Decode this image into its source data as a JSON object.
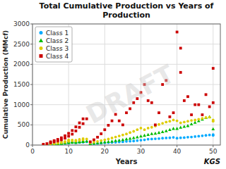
{
  "chart_data": {
    "type": "scatter",
    "title": "Total Cumulative Production vs Years of\nProduction",
    "x_label": "Years",
    "y_label": "Cumulative Production (MMcf)",
    "xlim": [
      0,
      52
    ],
    "ylim": [
      0,
      3000
    ],
    "xticks": [
      0,
      10,
      20,
      30,
      40,
      50
    ],
    "yticks": [
      0,
      500,
      1000,
      1500,
      2000,
      2500,
      3000
    ],
    "grid": true,
    "legend": "upper-left",
    "annotations": [
      "DRAFT",
      "KGS"
    ],
    "series": [
      {
        "name": "Class 1",
        "color": "#00AAFF",
        "marker": "circle",
        "x": [
          3,
          4,
          5,
          5,
          6,
          6,
          7,
          7,
          8,
          8,
          9,
          9,
          10,
          10,
          10,
          11,
          11,
          12,
          12,
          13,
          13,
          14,
          14,
          15,
          16,
          17,
          18,
          19,
          20,
          21,
          22,
          23,
          24,
          25,
          26,
          27,
          28,
          29,
          30,
          31,
          32,
          33,
          34,
          35,
          36,
          37,
          38,
          39,
          40,
          41,
          42,
          43,
          44,
          45,
          46,
          47,
          48,
          49,
          50,
          50
        ],
        "values": [
          5,
          10,
          15,
          20,
          20,
          30,
          25,
          35,
          30,
          45,
          40,
          55,
          50,
          65,
          75,
          60,
          70,
          55,
          68,
          65,
          75,
          70,
          82,
          80,
          30,
          35,
          40,
          50,
          55,
          60,
          65,
          70,
          75,
          80,
          90,
          95,
          100,
          110,
          120,
          130,
          145,
          150,
          155,
          160,
          170,
          175,
          180,
          190,
          170,
          180,
          185,
          195,
          200,
          210,
          220,
          230,
          240,
          250,
          240,
          260
        ]
      },
      {
        "name": "Class 2",
        "color": "#00BB00",
        "marker": "triangle",
        "x": [
          3,
          4,
          5,
          5,
          6,
          6,
          7,
          7,
          8,
          8,
          9,
          9,
          10,
          10,
          11,
          11,
          12,
          12,
          13,
          13,
          14,
          14,
          15,
          16,
          17,
          18,
          19,
          20,
          21,
          22,
          23,
          24,
          25,
          26,
          27,
          28,
          29,
          30,
          31,
          32,
          33,
          34,
          35,
          36,
          37,
          38,
          39,
          40,
          41,
          42,
          43,
          44,
          45,
          46,
          47,
          48,
          49,
          50
        ],
        "values": [
          8,
          12,
          18,
          25,
          25,
          35,
          30,
          45,
          38,
          55,
          50,
          65,
          60,
          75,
          70,
          85,
          65,
          80,
          75,
          90,
          85,
          100,
          100,
          35,
          45,
          55,
          65,
          75,
          85,
          95,
          110,
          120,
          135,
          150,
          165,
          180,
          200,
          220,
          240,
          260,
          280,
          290,
          310,
          330,
          350,
          380,
          410,
          410,
          440,
          460,
          480,
          520,
          560,
          600,
          640,
          680,
          700,
          400
        ]
      },
      {
        "name": "Class 3",
        "color": "#DDCC00",
        "marker": "circle",
        "x": [
          3,
          4,
          5,
          5,
          6,
          6,
          7,
          7,
          8,
          8,
          9,
          9,
          10,
          10,
          10,
          11,
          11,
          12,
          12,
          13,
          13,
          14,
          14,
          15,
          16,
          17,
          18,
          19,
          20,
          21,
          22,
          23,
          24,
          25,
          26,
          27,
          28,
          29,
          30,
          31,
          32,
          33,
          34,
          35,
          36,
          37,
          38,
          39,
          40,
          41,
          42,
          43,
          44,
          45,
          46,
          47,
          48,
          49,
          50,
          50
        ],
        "values": [
          10,
          18,
          28,
          38,
          35,
          50,
          45,
          60,
          55,
          75,
          70,
          90,
          90,
          110,
          130,
          105,
          125,
          100,
          120,
          115,
          140,
          130,
          160,
          150,
          55,
          70,
          90,
          110,
          130,
          150,
          175,
          200,
          225,
          250,
          275,
          310,
          340,
          380,
          420,
          380,
          420,
          440,
          470,
          510,
          540,
          570,
          590,
          620,
          600,
          550,
          570,
          590,
          610,
          620,
          640,
          660,
          680,
          690,
          590,
          620
        ]
      },
      {
        "name": "Class 4",
        "color": "#CC0000",
        "marker": "square",
        "x": [
          3,
          4,
          5,
          5,
          6,
          6,
          7,
          7,
          8,
          8,
          9,
          9,
          10,
          10,
          11,
          11,
          12,
          12,
          13,
          13,
          14,
          14,
          15,
          16,
          17,
          18,
          19,
          20,
          21,
          22,
          23,
          24,
          25,
          26,
          27,
          28,
          29,
          30,
          31,
          32,
          33,
          34,
          35,
          36,
          37,
          38,
          39,
          40,
          41,
          41,
          42,
          43,
          44,
          45,
          46,
          47,
          48,
          49,
          50,
          50
        ],
        "values": [
          20,
          35,
          55,
          80,
          80,
          110,
          100,
          140,
          130,
          180,
          170,
          230,
          220,
          290,
          270,
          360,
          350,
          450,
          440,
          550,
          530,
          650,
          650,
          80,
          130,
          195,
          280,
          380,
          490,
          600,
          760,
          600,
          500,
          800,
          900,
          1050,
          1150,
          1300,
          1500,
          1100,
          1050,
          500,
          800,
          1500,
          1600,
          700,
          800,
          2800,
          2400,
          1800,
          1100,
          1200,
          750,
          1000,
          1000,
          750,
          1250,
          950,
          1900,
          1050
        ]
      }
    ]
  }
}
